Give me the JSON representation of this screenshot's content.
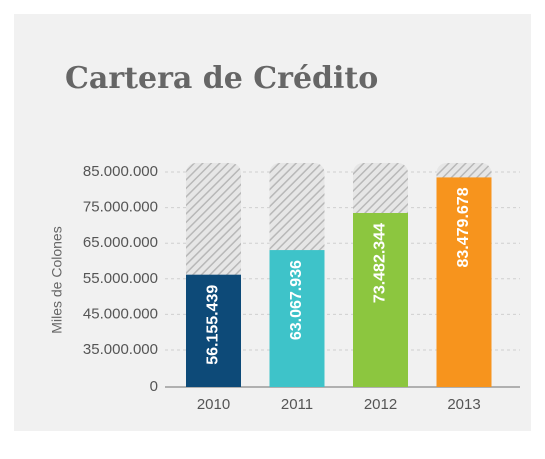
{
  "chart_data": {
    "type": "bar",
    "title": "Cartera de Crédito",
    "y_label": "Miles de Colones",
    "categories": [
      "2010",
      "2011",
      "2012",
      "2013"
    ],
    "values": [
      56155439,
      63067936,
      73482344,
      83479678
    ],
    "value_labels": [
      "56.155.439",
      "63.067.936",
      "73.482.344",
      "83.479.678"
    ],
    "colors": [
      "#0d4a78",
      "#3ec3c9",
      "#8cc63f",
      "#f7941d"
    ],
    "ylim": [
      0,
      85000000
    ],
    "yticks": [
      {
        "value": 0,
        "label": "0"
      },
      {
        "value": 35000000,
        "label": "35.000.000"
      },
      {
        "value": 45000000,
        "label": "45.000.000"
      },
      {
        "value": 55000000,
        "label": "55.000.000"
      },
      {
        "value": 65000000,
        "label": "65.000.000"
      },
      {
        "value": 75000000,
        "label": "75.000.000"
      },
      {
        "value": 85000000,
        "label": "85.000.000"
      }
    ],
    "broken_axis": true,
    "grid": true
  }
}
